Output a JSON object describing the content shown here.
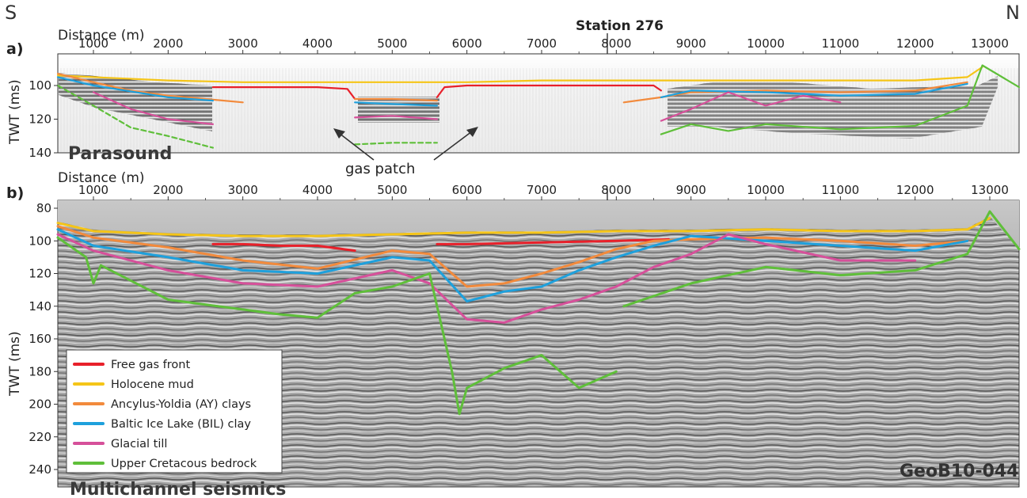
{
  "compass": {
    "left": "S",
    "right": "N"
  },
  "station_label": "Station 276",
  "gas_patch_label": "gas patch",
  "watermark": "GeoB10-044",
  "panels": {
    "a": {
      "label": "a)",
      "title": "Parasound",
      "x_label": "Distance (m)",
      "y_label": "TWT (ms)",
      "x_ticks": [
        "1000",
        "2000",
        "3000",
        "4000",
        "5000",
        "6000",
        "7000",
        "8000",
        "9000",
        "10000",
        "11000",
        "12000",
        "13000"
      ],
      "y_ticks": [
        "100",
        "120",
        "140"
      ]
    },
    "b": {
      "label": "b)",
      "title": "Multichannel seismics",
      "x_label": "Distance (m)",
      "y_label": "TWT (ms)",
      "x_ticks": [
        "1000",
        "2000",
        "3000",
        "4000",
        "5000",
        "6000",
        "7000",
        "8000",
        "9000",
        "10000",
        "11000",
        "12000",
        "13000"
      ],
      "y_ticks": [
        "80",
        "100",
        "120",
        "140",
        "160",
        "180",
        "200",
        "220",
        "240"
      ]
    }
  },
  "legend": [
    {
      "label": "Free gas front",
      "color": "#e8202a"
    },
    {
      "label": "Holocene mud",
      "color": "#f5c518"
    },
    {
      "label": "Ancylus-Yoldia (AY) clays",
      "color": "#f28a3c"
    },
    {
      "label": "Baltic Ice Lake (BIL) clay",
      "color": "#1ea0dc"
    },
    {
      "label": "Glacial till",
      "color": "#d6509a"
    },
    {
      "label": "Upper Cretacous bedrock",
      "color": "#5fbf3a"
    }
  ],
  "chart_data": {
    "type": "line",
    "x_unit": "m",
    "y_unit": "ms",
    "panels": [
      {
        "name": "a",
        "xlim": [
          500,
          13400
        ],
        "ylim": [
          82,
          140
        ],
        "series": [
          {
            "name": "Holocene mud",
            "x": [
              500,
              1000,
              2000,
              3000,
              4000,
              5000,
              6000,
              7000,
              8000,
              9000,
              10000,
              11000,
              12000,
              12700,
              12900
            ],
            "y": [
              94,
              95,
              97,
              98,
              98,
              98,
              98,
              97,
              97,
              97,
              97,
              97,
              97,
              95,
              89
            ]
          },
          {
            "name": "Free gas front",
            "x": [
              2600,
              3000,
              4000,
              4400,
              4500
            ],
            "y": [
              101,
              101,
              101,
              102,
              108
            ],
            "x2": [
              5600,
              5700,
              6000,
              7000,
              8000,
              8500,
              8600
            ],
            "y2": [
              107,
              101,
              100,
              100,
              100,
              100,
              103
            ]
          },
          {
            "name": "Ancylus-Yoldia (AY) clays",
            "x": [
              500,
              1000,
              1500,
              2000,
              2500,
              3000
            ],
            "y": [
              93,
              98,
              103,
              106,
              108,
              110
            ],
            "x2": [
              4500,
              5000,
              5600
            ],
            "y2": [
              108,
              108,
              109
            ],
            "x3": [
              8100,
              8600,
              9000,
              10000,
              11000,
              12000,
              12700
            ],
            "y3": [
              110,
              107,
              104,
              103,
              104,
              103,
              98
            ]
          },
          {
            "name": "Baltic Ice Lake (BIL) clay",
            "x": [
              500,
              1000,
              2000,
              2600
            ],
            "y": [
              95,
              100,
              107,
              109
            ],
            "x2": [
              4500,
              5000,
              5600
            ],
            "y2": [
              110,
              111,
              112
            ],
            "x3": [
              8600,
              9000,
              10000,
              11000,
              12000,
              12700
            ],
            "y3": [
              107,
              103,
              104,
              106,
              105,
              99
            ]
          },
          {
            "name": "Glacial till",
            "x": [
              1000,
              1500,
              2000,
              2600
            ],
            "y": [
              104,
              114,
              120,
              123
            ],
            "x2": [
              4500,
              5000,
              5600
            ],
            "y2": [
              119,
              118,
              120
            ],
            "x3": [
              8600,
              9000,
              9500,
              10000,
              10500,
              11000
            ],
            "y3": [
              121,
              114,
              104,
              112,
              106,
              110
            ]
          },
          {
            "name": "Upper Cretacous bedrock",
            "x": [
              500,
              1000,
              1500,
              2000,
              2600
            ],
            "y": [
              100,
              112,
              125,
              130,
              137
            ],
            "x2": [
              4500,
              5000,
              5600
            ],
            "y2": [
              135,
              134,
              134
            ],
            "x3": [
              8600,
              9000,
              9500,
              10000,
              11000,
              12000,
              12700,
              12900,
              13400
            ],
            "y3": [
              129,
              123,
              127,
              123,
              126,
              124,
              112,
              88,
              101
            ]
          }
        ]
      },
      {
        "name": "b",
        "xlim": [
          500,
          13400
        ],
        "ylim": [
          72,
          250
        ],
        "series": [
          {
            "name": "Holocene mud",
            "x": [
              500,
              1000,
              2000,
              3000,
              4000,
              5000,
              6000,
              7000,
              8000,
              9000,
              10000,
              11000,
              12000,
              12700,
              13000
            ],
            "y": [
              89,
              94,
              96,
              97,
              97,
              96,
              95,
              95,
              94,
              94,
              93,
              94,
              94,
              93,
              86
            ]
          },
          {
            "name": "Free gas front",
            "x": [
              2600,
              3000,
              3500,
              4000,
              4500
            ],
            "y": [
              102,
              102,
              103,
              103,
              106
            ],
            "x2": [
              5600,
              6000,
              7000,
              8000,
              8700
            ],
            "y2": [
              102,
              102,
              101,
              100,
              99
            ]
          },
          {
            "name": "Ancylus-Yoldia (AY) clays",
            "x": [
              500,
              1000,
              2000,
              3000,
              4000,
              5000,
              5500,
              6000,
              6500,
              7000,
              7500,
              8000,
              8500,
              9000,
              10000,
              11000,
              12000,
              12700
            ],
            "y": [
              91,
              98,
              104,
              112,
              117,
              106,
              108,
              128,
              126,
              120,
              113,
              105,
              100,
              99,
              98,
              100,
              103,
              100
            ]
          },
          {
            "name": "Baltic Ice Lake (BIL) clay",
            "x": [
              500,
              1000,
              2000,
              3000,
              4000,
              5000,
              5500,
              6000,
              6500,
              7000,
              7500,
              8000,
              8500,
              9000,
              10000,
              11000,
              12000,
              12700
            ],
            "y": [
              93,
              103,
              110,
              118,
              120,
              110,
              112,
              137,
              131,
              128,
              118,
              110,
              103,
              97,
              100,
              103,
              106,
              100
            ]
          },
          {
            "name": "Glacial till",
            "x": [
              500,
              1000,
              2000,
              3000,
              4000,
              5000,
              5500,
              6000,
              6500,
              7000,
              7500,
              8000,
              8500,
              9000,
              9500,
              10000,
              11000,
              12000
            ],
            "y": [
              96,
              106,
              118,
              126,
              128,
              118,
              126,
              148,
              150,
              142,
              136,
              128,
              116,
              108,
              96,
              102,
              112,
              112
            ]
          },
          {
            "name": "Upper Cretacous bedrock",
            "x": [
              500,
              900,
              1000,
              1100,
              2000,
              3000,
              3500,
              4000,
              4500,
              5000,
              5500,
              5800,
              5900,
              6000,
              6500,
              7000,
              7500,
              8000
            ],
            "y": [
              98,
              110,
              126,
              115,
              136,
              142,
              145,
              147,
              132,
              128,
              120,
              180,
              206,
              190,
              178,
              170,
              190,
              180
            ],
            "x2": [
              8100,
              9000,
              10000,
              11000,
              12000,
              12700,
              13000,
              13400
            ],
            "y2": [
              140,
              126,
              116,
              121,
              118,
              108,
              82,
              105
            ]
          }
        ]
      }
    ]
  }
}
